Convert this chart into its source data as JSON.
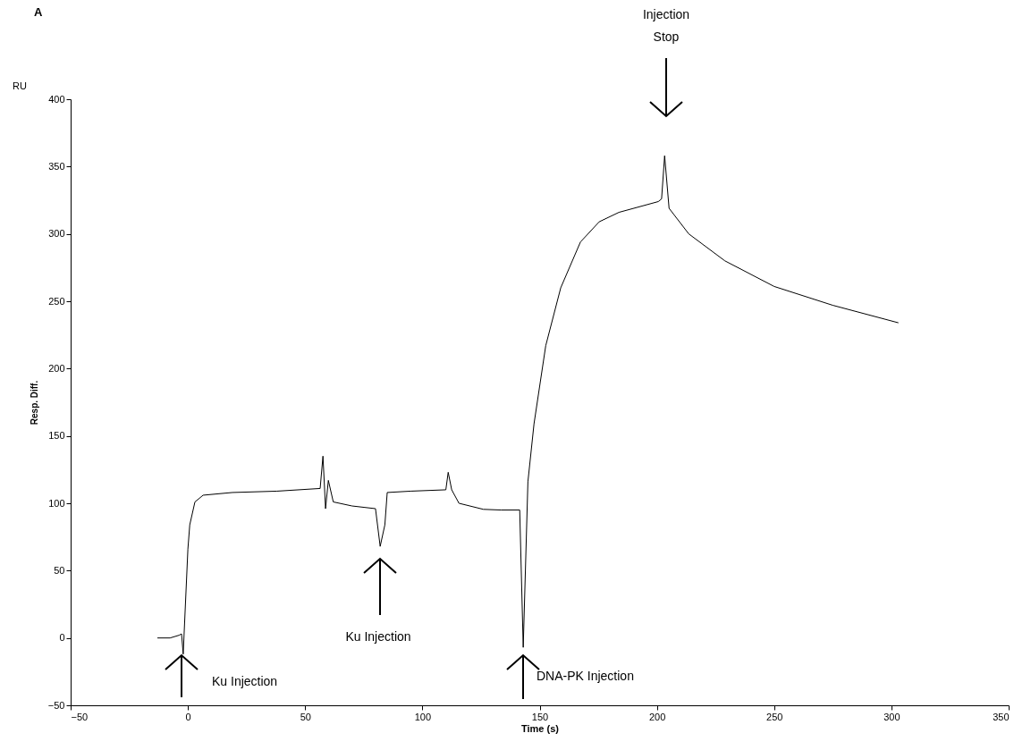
{
  "chart_data": {
    "type": "line",
    "title": "A",
    "xlabel": "Time (s)",
    "ylabel": "Resp. Diff.",
    "x": [
      -13,
      -7.6,
      -3.8,
      -2.7,
      -2,
      0,
      0.8,
      3,
      6.5,
      19,
      38,
      56.4,
      57.6,
      58.7,
      59.9,
      62,
      70,
      80,
      82,
      84,
      85,
      95,
      110,
      111,
      112.5,
      115.6,
      126,
      133.5,
      141.5,
      143,
      145,
      147.6,
      152.6,
      159,
      167.4,
      175.4,
      183.8,
      200.6,
      202,
      203.3,
      205.2,
      213.6,
      229,
      250,
      275,
      303
    ],
    "series": [
      {
        "color": "#000000",
        "values": [
          0,
          0,
          2,
          3,
          -12,
          66,
          84,
          101,
          106,
          108,
          109,
          111,
          135,
          96,
          117,
          101,
          98,
          96,
          68,
          84,
          108,
          109,
          110,
          123,
          110,
          100,
          95.5,
          95,
          95,
          -7,
          116,
          159,
          217,
          260,
          294,
          309,
          316,
          324,
          326,
          358,
          319,
          300,
          280,
          261,
          247,
          234
        ]
      }
    ],
    "xlim": [
      -50,
      350
    ],
    "xticks": [
      -50,
      0,
      50,
      100,
      150,
      200,
      250,
      300,
      350
    ],
    "ylim": [
      -50,
      400
    ],
    "yticks": [
      -50,
      0,
      50,
      100,
      150,
      200,
      250,
      300,
      350,
      400
    ],
    "grid": false,
    "legend": false,
    "marker": "none",
    "line_style": "solid",
    "annotations": [
      "Ku Injection",
      "Ku Injection",
      "DNA-PK Injection",
      "Injection Stop",
      "RU"
    ]
  }
}
